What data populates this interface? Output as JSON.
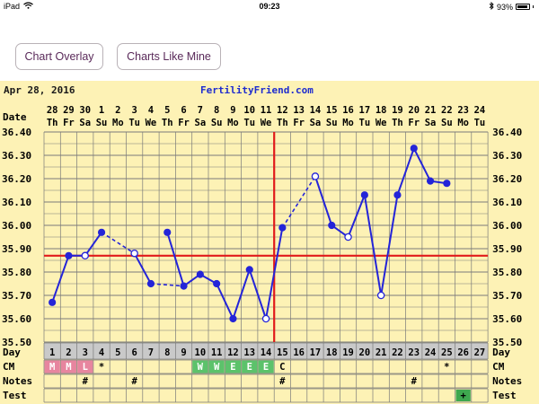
{
  "status_bar": {
    "device": "iPad",
    "time": "09:23",
    "battery": "93%",
    "battery_level": 0.93
  },
  "buttons": {
    "overlay": "Chart Overlay",
    "like_mine": "Charts Like Mine"
  },
  "chart_header": {
    "date": "Apr 28, 2016",
    "brand": "FertilityFriend.com"
  },
  "row_labels": {
    "date": "Date",
    "day": "Day",
    "cm": "CM",
    "notes": "Notes",
    "test": "Test"
  },
  "chart_data": {
    "type": "line",
    "ylim": [
      35.5,
      36.4
    ],
    "y_ticks": [
      "36.40",
      "36.30",
      "36.20",
      "36.10",
      "36.00",
      "35.90",
      "35.80",
      "35.70",
      "35.60",
      "35.50"
    ],
    "dates": [
      "28",
      "29",
      "30",
      "1",
      "2",
      "3",
      "4",
      "5",
      "6",
      "7",
      "8",
      "9",
      "10",
      "11",
      "12",
      "13",
      "14",
      "15",
      "16",
      "17",
      "18",
      "19",
      "20",
      "21",
      "22",
      "23",
      "24"
    ],
    "weekdays": [
      "Th",
      "Fr",
      "Sa",
      "Su",
      "Mo",
      "Tu",
      "We",
      "Th",
      "Fr",
      "Sa",
      "Su",
      "Mo",
      "Tu",
      "We",
      "Th",
      "Fr",
      "Sa",
      "Su",
      "Mo",
      "Tu",
      "We",
      "Th",
      "Fr",
      "Sa",
      "Su",
      "Mo",
      "Tu"
    ],
    "cycle_days": [
      "1",
      "2",
      "3",
      "4",
      "5",
      "6",
      "7",
      "8",
      "9",
      "10",
      "11",
      "12",
      "13",
      "14",
      "15",
      "16",
      "17",
      "18",
      "19",
      "20",
      "21",
      "22",
      "23",
      "24",
      "25",
      "26",
      "27"
    ],
    "temps": [
      35.67,
      35.87,
      35.87,
      35.97,
      null,
      35.88,
      35.75,
      35.97,
      35.74,
      35.79,
      35.75,
      35.6,
      35.81,
      35.6,
      35.99,
      null,
      36.21,
      36.0,
      35.95,
      36.13,
      35.7,
      36.13,
      36.33,
      36.19,
      36.18,
      null,
      null
    ],
    "open_points": [
      2,
      5,
      13,
      16,
      18,
      20
    ],
    "solid_segments": [
      [
        0,
        1
      ],
      [
        1,
        2
      ],
      [
        2,
        3
      ],
      [
        5,
        6
      ],
      [
        7,
        8
      ],
      [
        8,
        9
      ],
      [
        9,
        10
      ],
      [
        10,
        11
      ],
      [
        11,
        12
      ],
      [
        12,
        13
      ],
      [
        13,
        14
      ],
      [
        16,
        17
      ],
      [
        17,
        18
      ],
      [
        18,
        19
      ],
      [
        19,
        20
      ],
      [
        20,
        21
      ],
      [
        21,
        22
      ],
      [
        22,
        23
      ],
      [
        23,
        24
      ]
    ],
    "dashed_segments": [
      [
        3,
        5
      ],
      [
        6,
        8
      ],
      [
        14,
        16
      ]
    ],
    "coverline": 35.87,
    "ovulation_day_index": 13,
    "cm": [
      "M",
      "M",
      "L",
      "*",
      "",
      "",
      "",
      "",
      "",
      "W",
      "W",
      "E",
      "E",
      "E",
      "C",
      "",
      "",
      "",
      "",
      "",
      "",
      "",
      "",
      "",
      "*",
      "",
      ""
    ],
    "cm_colors": {
      "M": "#e7859f",
      "L": "#e7859f",
      "W": "#5cc26b",
      "E": "#5cc26b"
    },
    "notes": [
      "",
      "",
      "#",
      "",
      "",
      "#",
      "",
      "",
      "",
      "",
      "",
      "",
      "",
      "",
      "#",
      "",
      "",
      "",
      "",
      "",
      "",
      "",
      "#",
      "",
      "",
      "",
      ""
    ],
    "test": [
      "",
      "",
      "",
      "",
      "",
      "",
      "",
      "",
      "",
      "",
      "",
      "",
      "",
      "",
      "",
      "",
      "",
      "",
      "",
      "",
      "",
      "",
      "",
      "",
      "",
      "+",
      ""
    ],
    "colors": {
      "line": "#2424d8",
      "grid": "#7a7a7a",
      "coverline": "#e11b1b",
      "ovulation": "#e11b1b",
      "background": "#fdf2b5",
      "day_row": "#c9c9c9",
      "test_positive": "#3ea84f"
    }
  }
}
